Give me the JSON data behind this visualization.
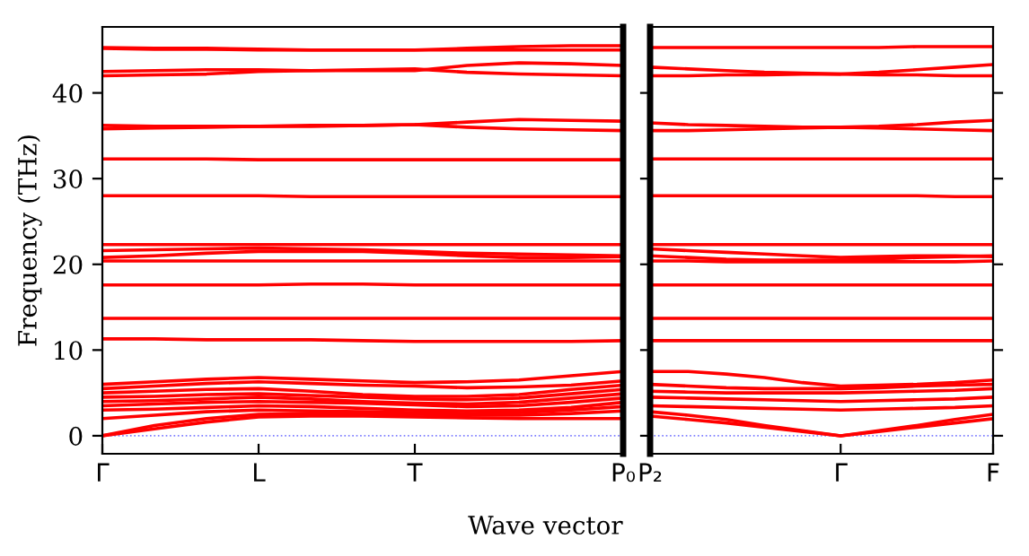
{
  "chart_data": [
    {
      "type": "line",
      "ylabel": "Frequency (THz)",
      "xlabel": "Wave vector",
      "ylim": [
        -2.1,
        47.7
      ],
      "categories": [
        "Γ",
        null,
        null,
        "L",
        null,
        null,
        "T",
        null,
        null,
        null,
        "P₀"
      ],
      "yticks": [
        0,
        10,
        20,
        30,
        40
      ],
      "grid": false,
      "legend": false,
      "marker": "none",
      "line_style": "solid",
      "ref_lines": [
        {
          "axis": "y",
          "value": 0,
          "color": "#8080ff",
          "line_style": "dotted"
        }
      ],
      "series": [
        {
          "color": "#ff0000",
          "values": [
            0,
            0.8,
            1.6,
            2.2,
            2.3,
            2.3,
            2.2,
            2.1,
            2.0,
            2.0,
            2.0
          ]
        },
        {
          "color": "#ff0000",
          "values": [
            0,
            1.2,
            2.0,
            2.5,
            2.6,
            2.6,
            2.5,
            2.4,
            2.4,
            2.6,
            2.9
          ]
        },
        {
          "color": "#ff0000",
          "values": [
            2.0,
            2.4,
            2.8,
            3.0,
            2.9,
            2.8,
            2.7,
            2.6,
            2.7,
            3.0,
            3.4
          ]
        },
        {
          "color": "#ff0000",
          "values": [
            3.0,
            3.1,
            3.3,
            3.5,
            3.4,
            3.2,
            3.0,
            2.9,
            3.0,
            3.3,
            3.9
          ]
        },
        {
          "color": "#ff0000",
          "values": [
            3.5,
            3.7,
            3.9,
            4.0,
            3.9,
            3.8,
            3.6,
            3.4,
            3.5,
            3.9,
            4.4
          ]
        },
        {
          "color": "#ff0000",
          "values": [
            4.0,
            4.1,
            4.3,
            4.5,
            4.3,
            4.0,
            3.8,
            3.7,
            3.9,
            4.4,
            4.9
          ]
        },
        {
          "color": "#ff0000",
          "values": [
            4.5,
            4.6,
            4.8,
            4.9,
            4.7,
            4.5,
            4.3,
            4.2,
            4.4,
            4.9,
            5.4
          ]
        },
        {
          "color": "#ff0000",
          "values": [
            5.0,
            5.2,
            5.4,
            5.5,
            5.2,
            4.8,
            4.6,
            4.6,
            4.8,
            5.4,
            5.9
          ]
        },
        {
          "color": "#ff0000",
          "values": [
            5.5,
            5.8,
            6.1,
            6.3,
            6.1,
            5.9,
            5.8,
            5.6,
            5.7,
            5.9,
            6.4
          ]
        },
        {
          "color": "#ff0000",
          "values": [
            6.0,
            6.3,
            6.6,
            6.8,
            6.6,
            6.4,
            6.2,
            6.3,
            6.5,
            7.0,
            7.5
          ]
        },
        {
          "color": "#ff0000",
          "values": [
            11.3,
            11.3,
            11.2,
            11.2,
            11.2,
            11.1,
            11.0,
            11.0,
            11.0,
            11.0,
            11.1
          ]
        },
        {
          "color": "#ff0000",
          "values": [
            13.7,
            13.7,
            13.7,
            13.7,
            13.7,
            13.7,
            13.7,
            13.7,
            13.7,
            13.7,
            13.7
          ]
        },
        {
          "color": "#ff0000",
          "values": [
            17.6,
            17.6,
            17.6,
            17.6,
            17.7,
            17.7,
            17.6,
            17.6,
            17.6,
            17.6,
            17.6
          ]
        },
        {
          "color": "#ff0000",
          "values": [
            20.4,
            20.4,
            20.4,
            20.4,
            20.4,
            20.4,
            20.4,
            20.4,
            20.4,
            20.4,
            20.4
          ]
        },
        {
          "color": "#ff0000",
          "values": [
            20.8,
            21.0,
            21.3,
            21.5,
            21.5,
            21.5,
            21.3,
            21.0,
            20.8,
            20.8,
            20.9
          ]
        },
        {
          "color": "#ff0000",
          "values": [
            21.6,
            21.7,
            21.8,
            21.9,
            21.8,
            21.7,
            21.5,
            21.3,
            21.2,
            21.1,
            21.0
          ]
        },
        {
          "color": "#ff0000",
          "values": [
            22.3,
            22.3,
            22.3,
            22.3,
            22.3,
            22.3,
            22.3,
            22.3,
            22.3,
            22.3,
            22.3
          ]
        },
        {
          "color": "#ff0000",
          "values": [
            28.0,
            28.0,
            28.0,
            28.0,
            27.9,
            27.9,
            27.9,
            27.9,
            27.9,
            27.9,
            27.9
          ]
        },
        {
          "color": "#ff0000",
          "values": [
            32.3,
            32.3,
            32.3,
            32.2,
            32.2,
            32.2,
            32.2,
            32.2,
            32.2,
            32.2,
            32.2
          ]
        },
        {
          "color": "#ff0000",
          "values": [
            35.8,
            35.9,
            36.0,
            36.1,
            36.1,
            36.2,
            36.3,
            36.0,
            35.8,
            35.7,
            35.6
          ]
        },
        {
          "color": "#ff0000",
          "values": [
            36.2,
            36.1,
            36.1,
            36.1,
            36.2,
            36.2,
            36.3,
            36.6,
            36.9,
            36.8,
            36.7
          ]
        },
        {
          "color": "#ff0000",
          "values": [
            42.0,
            42.1,
            42.2,
            42.5,
            42.6,
            42.7,
            42.8,
            42.4,
            42.2,
            42.1,
            42.0
          ]
        },
        {
          "color": "#ff0000",
          "values": [
            42.5,
            42.6,
            42.7,
            42.7,
            42.6,
            42.6,
            42.6,
            43.2,
            43.5,
            43.4,
            43.2
          ]
        },
        {
          "color": "#ff0000",
          "values": [
            45.3,
            45.2,
            45.2,
            45.1,
            45.0,
            45.0,
            45.0,
            45.2,
            45.4,
            45.5,
            45.5
          ]
        },
        {
          "color": "#ff0000",
          "values": [
            45.2,
            45.1,
            45.1,
            45.0,
            45.0,
            45.0,
            45.0,
            45.0,
            45.0,
            45.0,
            45.0
          ]
        }
      ]
    },
    {
      "type": "line",
      "ylim": [
        -2.1,
        47.7
      ],
      "tick_labels": "x",
      "categories": [
        "P₂",
        null,
        null,
        null,
        null,
        "Γ",
        null,
        null,
        null,
        "F"
      ],
      "yticks": [
        0,
        10,
        20,
        30,
        40
      ],
      "grid": false,
      "legend": false,
      "marker": "none",
      "line_style": "solid",
      "ref_lines": [
        {
          "axis": "y",
          "value": 0,
          "color": "#8080ff",
          "line_style": "dotted"
        }
      ],
      "series": [
        {
          "color": "#ff0000",
          "values": [
            2.3,
            1.9,
            1.5,
            1.0,
            0.5,
            0,
            0.5,
            1.0,
            1.5,
            2.0
          ]
        },
        {
          "color": "#ff0000",
          "values": [
            2.8,
            2.4,
            1.9,
            1.2,
            0.6,
            0,
            0.6,
            1.2,
            1.9,
            2.5
          ]
        },
        {
          "color": "#ff0000",
          "values": [
            3.5,
            3.4,
            3.3,
            3.2,
            3.1,
            3.0,
            3.1,
            3.2,
            3.3,
            3.5
          ]
        },
        {
          "color": "#ff0000",
          "values": [
            4.5,
            4.4,
            4.3,
            4.2,
            4.1,
            4.0,
            4.1,
            4.2,
            4.3,
            4.5
          ]
        },
        {
          "color": "#ff0000",
          "values": [
            5.2,
            5.1,
            5.0,
            5.0,
            5.0,
            5.0,
            5.1,
            5.2,
            5.3,
            5.5
          ]
        },
        {
          "color": "#ff0000",
          "values": [
            6.0,
            5.8,
            5.6,
            5.5,
            5.5,
            5.5,
            5.6,
            5.8,
            5.9,
            6.0
          ]
        },
        {
          "color": "#ff0000",
          "values": [
            7.5,
            7.5,
            7.2,
            6.8,
            6.2,
            5.8,
            5.9,
            6.0,
            6.2,
            6.5
          ]
        },
        {
          "color": "#ff0000",
          "values": [
            11.1,
            11.1,
            11.1,
            11.1,
            11.1,
            11.1,
            11.1,
            11.1,
            11.1,
            11.1
          ]
        },
        {
          "color": "#ff0000",
          "values": [
            13.7,
            13.7,
            13.7,
            13.7,
            13.7,
            13.7,
            13.7,
            13.7,
            13.7,
            13.7
          ]
        },
        {
          "color": "#ff0000",
          "values": [
            17.6,
            17.6,
            17.6,
            17.6,
            17.6,
            17.6,
            17.6,
            17.6,
            17.6,
            17.6
          ]
        },
        {
          "color": "#ff0000",
          "values": [
            20.4,
            20.4,
            20.3,
            20.3,
            20.3,
            20.3,
            20.3,
            20.3,
            20.3,
            20.4
          ]
        },
        {
          "color": "#ff0000",
          "values": [
            21.0,
            20.8,
            20.6,
            20.5,
            20.5,
            20.5,
            20.6,
            20.8,
            20.9,
            21.0
          ]
        },
        {
          "color": "#ff0000",
          "values": [
            21.8,
            21.6,
            21.4,
            21.2,
            21.0,
            20.8,
            20.9,
            21.0,
            21.0,
            20.9
          ]
        },
        {
          "color": "#ff0000",
          "values": [
            22.3,
            22.3,
            22.3,
            22.3,
            22.3,
            22.3,
            22.3,
            22.3,
            22.3,
            22.3
          ]
        },
        {
          "color": "#ff0000",
          "values": [
            28.0,
            28.0,
            28.0,
            28.0,
            28.0,
            28.0,
            28.0,
            28.0,
            27.9,
            27.9
          ]
        },
        {
          "color": "#ff0000",
          "values": [
            32.3,
            32.3,
            32.3,
            32.3,
            32.3,
            32.3,
            32.3,
            32.3,
            32.3,
            32.3
          ]
        },
        {
          "color": "#ff0000",
          "values": [
            35.6,
            35.6,
            35.7,
            35.8,
            35.9,
            36.0,
            35.9,
            35.8,
            35.7,
            35.6
          ]
        },
        {
          "color": "#ff0000",
          "values": [
            36.5,
            36.3,
            36.2,
            36.1,
            36.0,
            36.0,
            36.1,
            36.3,
            36.6,
            36.8
          ]
        },
        {
          "color": "#ff0000",
          "values": [
            42.0,
            42.0,
            42.1,
            42.1,
            42.2,
            42.2,
            42.1,
            42.1,
            42.0,
            42.0
          ]
        },
        {
          "color": "#ff0000",
          "values": [
            43.0,
            42.8,
            42.6,
            42.4,
            42.3,
            42.2,
            42.4,
            42.7,
            43.0,
            43.3
          ]
        },
        {
          "color": "#ff0000",
          "values": [
            45.3,
            45.3,
            45.3,
            45.3,
            45.3,
            45.3,
            45.3,
            45.4,
            45.4,
            45.4
          ]
        }
      ]
    }
  ]
}
